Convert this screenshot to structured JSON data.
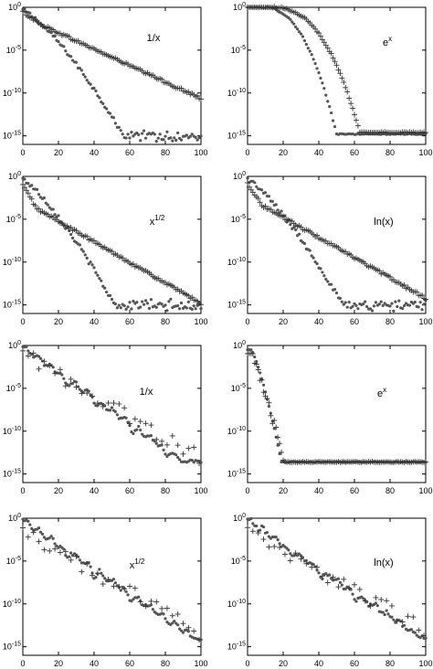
{
  "chart_data": [
    {
      "type": "scatter",
      "label_base": "1/x",
      "label_sup": "",
      "xlim": [
        0,
        100
      ],
      "ylim_exp": [
        -16,
        0
      ],
      "xticks": [
        "0",
        "20",
        "40",
        "60",
        "80",
        "100"
      ],
      "yticks": [
        {
          "base": "10",
          "exp": "0"
        },
        {
          "base": "10",
          "exp": "-5"
        },
        {
          "base": "10",
          "exp": "-10"
        },
        {
          "base": "10",
          "exp": "-15"
        }
      ],
      "series": [
        {
          "marker": "dot",
          "shape": "knee",
          "params": {
            "start": -0.3,
            "knee_x": 57,
            "knee_y": -15.2,
            "curv": 1.6,
            "noise": 0.25
          }
        },
        {
          "marker": "plus",
          "shape": "linear",
          "params": {
            "start": -0.5,
            "slope_early": -0.15,
            "slope_late": -0.096,
            "bend_x": 10,
            "noise": 0.15
          }
        }
      ]
    },
    {
      "type": "scatter",
      "label_base": "e",
      "label_sup": "x",
      "xlim": [
        0,
        100
      ],
      "ylim_exp": [
        -16,
        0
      ],
      "xticks": [
        "0",
        "20",
        "40",
        "60",
        "80",
        "100"
      ],
      "yticks": [
        {
          "base": "10",
          "exp": "0"
        },
        {
          "base": "10",
          "exp": "-5"
        },
        {
          "base": "10",
          "exp": "-10"
        },
        {
          "base": "10",
          "exp": "-15"
        }
      ],
      "series": [
        {
          "marker": "dot",
          "shape": "cliff",
          "params": {
            "start": 0,
            "drop_x": 50,
            "floor": -14.8,
            "curv": 2.4,
            "flat_until": 8,
            "noise": 0.1
          }
        },
        {
          "marker": "plus",
          "shape": "cliff",
          "params": {
            "start": 0,
            "drop_x": 63,
            "floor": -14.6,
            "curv": 2.6,
            "flat_until": 12,
            "noise": 0.1
          }
        }
      ]
    },
    {
      "type": "scatter",
      "label_base": "x",
      "label_sup": "1/2",
      "xlim": [
        0,
        100
      ],
      "ylim_exp": [
        -16,
        0
      ],
      "xticks": [
        "0",
        "20",
        "40",
        "60",
        "80",
        "100"
      ],
      "yticks": [
        {
          "base": "10",
          "exp": "0"
        },
        {
          "base": "10",
          "exp": "-5"
        },
        {
          "base": "10",
          "exp": "-10"
        },
        {
          "base": "10",
          "exp": "-15"
        }
      ],
      "series": [
        {
          "marker": "dot",
          "shape": "knee",
          "params": {
            "start": -0.3,
            "knee_x": 52,
            "knee_y": -15.2,
            "curv": 1.5,
            "noise": 0.3
          }
        },
        {
          "marker": "plus",
          "shape": "linear",
          "params": {
            "start": -1,
            "slope_early": -0.35,
            "slope_late": -0.12,
            "bend_x": 8,
            "noise": 0.15,
            "floor": -15.1
          }
        }
      ]
    },
    {
      "type": "scatter",
      "label_base": "ln(x)",
      "label_sup": "",
      "xlim": [
        0,
        100
      ],
      "ylim_exp": [
        -16,
        0
      ],
      "xticks": [
        "0",
        "20",
        "40",
        "60",
        "80",
        "100"
      ],
      "yticks": [
        {
          "base": "10",
          "exp": "0"
        },
        {
          "base": "10",
          "exp": "-5"
        },
        {
          "base": "10",
          "exp": "-10"
        },
        {
          "base": "10",
          "exp": "-15"
        }
      ],
      "series": [
        {
          "marker": "dot",
          "shape": "knee",
          "params": {
            "start": -0.3,
            "knee_x": 54,
            "knee_y": -15.2,
            "curv": 1.5,
            "noise": 0.3
          }
        },
        {
          "marker": "plus",
          "shape": "linear",
          "params": {
            "start": -0.8,
            "slope_early": -0.32,
            "slope_late": -0.118,
            "bend_x": 8,
            "noise": 0.15,
            "floor": -15.1
          }
        }
      ]
    },
    {
      "type": "scatter",
      "label_base": "1/x",
      "label_sup": "",
      "xlim": [
        0,
        100
      ],
      "ylim_exp": [
        -16,
        0
      ],
      "xticks": [
        "0",
        "20",
        "40",
        "60",
        "80",
        "100"
      ],
      "yticks": [
        {
          "base": "10",
          "exp": "0"
        },
        {
          "base": "10",
          "exp": "-5"
        },
        {
          "base": "10",
          "exp": "-10"
        },
        {
          "base": "10",
          "exp": "-15"
        }
      ],
      "series": [
        {
          "marker": "dot",
          "shape": "steps",
          "params": {
            "start": -0.2,
            "end_x": 90,
            "end_y": -13.5,
            "steps": [
              24,
              42,
              62,
              80
            ],
            "noise": 0.15
          }
        },
        {
          "marker": "plus",
          "shape": "scatterline",
          "params": {
            "start": -1,
            "slope": -0.12,
            "step": 3,
            "noise": 1.0
          }
        }
      ]
    },
    {
      "type": "scatter",
      "label_base": "e",
      "label_sup": "x",
      "xlim": [
        0,
        100
      ],
      "ylim_exp": [
        -16,
        0
      ],
      "xticks": [
        "0",
        "20",
        "40",
        "60",
        "80",
        "100"
      ],
      "yticks": [
        {
          "base": "10",
          "exp": "0"
        },
        {
          "base": "10",
          "exp": "-5"
        },
        {
          "base": "10",
          "exp": "-10"
        },
        {
          "base": "10",
          "exp": "-15"
        }
      ],
      "series": [
        {
          "marker": "dot",
          "shape": "cliff",
          "params": {
            "start": -0.5,
            "drop_x": 19,
            "floor": -13.6,
            "curv": 1.3,
            "flat_until": 2,
            "noise": 0.05
          }
        },
        {
          "marker": "plus",
          "shape": "cliff",
          "params": {
            "start": -1,
            "drop_x": 21,
            "floor": -13.6,
            "curv": 1.1,
            "flat_until": 2,
            "noise": 0.6
          }
        }
      ]
    },
    {
      "type": "scatter",
      "label_base": "x",
      "label_sup": "1/2",
      "xlim": [
        0,
        100
      ],
      "ylim_exp": [
        -16,
        0
      ],
      "xticks": [
        "0",
        "20",
        "40",
        "60",
        "80",
        "100"
      ],
      "yticks": [
        {
          "base": "10",
          "exp": "0"
        },
        {
          "base": "10",
          "exp": "-5"
        },
        {
          "base": "10",
          "exp": "-10"
        },
        {
          "base": "10",
          "exp": "-15"
        }
      ],
      "series": [
        {
          "marker": "dot",
          "shape": "steps",
          "params": {
            "start": -0.2,
            "end_x": 100,
            "end_y": -14.5,
            "steps": [
              24,
              40,
              60
            ],
            "noise": 0.2
          }
        },
        {
          "marker": "plus",
          "shape": "scatterline",
          "params": {
            "start": -1.5,
            "slope": -0.12,
            "step": 3,
            "noise": 0.9,
            "floor": -14.4
          }
        }
      ]
    },
    {
      "type": "scatter",
      "label_base": "ln(x)",
      "label_sup": "",
      "xlim": [
        0,
        100
      ],
      "ylim_exp": [
        -16,
        0
      ],
      "xticks": [
        "0",
        "20",
        "40",
        "60",
        "80",
        "100"
      ],
      "yticks": [
        {
          "base": "10",
          "exp": "0"
        },
        {
          "base": "10",
          "exp": "-5"
        },
        {
          "base": "10",
          "exp": "-10"
        },
        {
          "base": "10",
          "exp": "-15"
        }
      ],
      "series": [
        {
          "marker": "dot",
          "shape": "steps",
          "params": {
            "start": -0.2,
            "end_x": 100,
            "end_y": -14.3,
            "steps": [
              24,
              42,
              60
            ],
            "noise": 0.25
          }
        },
        {
          "marker": "plus",
          "shape": "scatterline",
          "params": {
            "start": -1.5,
            "slope": -0.115,
            "step": 3,
            "noise": 0.9,
            "floor": -14.2
          }
        }
      ]
    }
  ]
}
